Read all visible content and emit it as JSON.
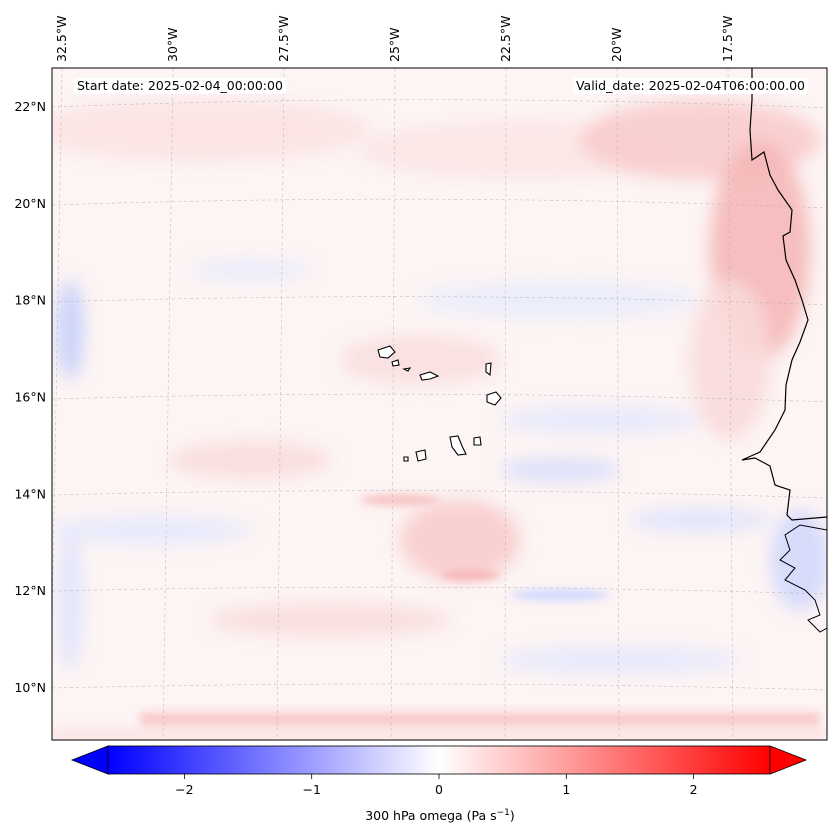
{
  "map": {
    "start_date_text": "Start date: 2025-02-04_00:00:00",
    "valid_date_text": "Valid_date: 2025-02-04T06:00:00.00",
    "lon_ticks": [
      {
        "label": "32.5°W",
        "lon": -32.5
      },
      {
        "label": "30°W",
        "lon": -30
      },
      {
        "label": "27.5°W",
        "lon": -27.5
      },
      {
        "label": "25°W",
        "lon": -25
      },
      {
        "label": "22.5°W",
        "lon": -22.5
      },
      {
        "label": "20°W",
        "lon": -20
      },
      {
        "label": "17.5°W",
        "lon": -17.5
      }
    ],
    "lat_ticks": [
      {
        "label": "22°N",
        "lat": 22
      },
      {
        "label": "20°N",
        "lat": 20
      },
      {
        "label": "18°N",
        "lat": 18
      },
      {
        "label": "16°N",
        "lat": 16
      },
      {
        "label": "14°N",
        "lat": 14
      },
      {
        "label": "12°N",
        "lat": 12
      },
      {
        "label": "10°N",
        "lat": 10
      }
    ],
    "features": [
      "coastline-west-africa",
      "cape-verde-islands",
      "gridlines"
    ]
  },
  "colorbar": {
    "label_main": "300 hPa omega (Pa s",
    "label_exp": "−1",
    "label_close": ")",
    "ticks": [
      {
        "label": "−2",
        "value": -2
      },
      {
        "label": "−1",
        "value": -1
      },
      {
        "label": "0",
        "value": 0
      },
      {
        "label": "1",
        "value": 1
      },
      {
        "label": "2",
        "value": 2
      }
    ],
    "range": [
      -2.6,
      2.6
    ],
    "colors": {
      "negative": "#0000ff",
      "zero": "#ffffff",
      "positive": "#ff0000"
    },
    "extend": "both"
  }
}
